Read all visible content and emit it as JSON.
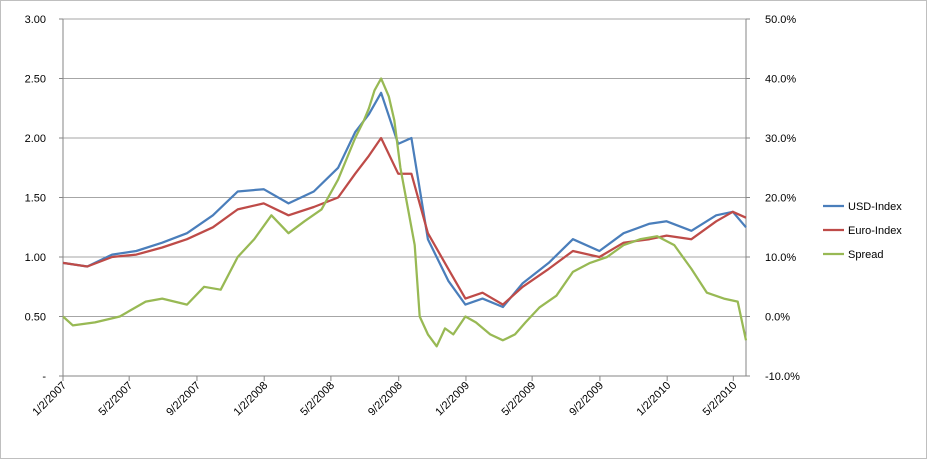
{
  "chart_data": {
    "type": "line",
    "title": "",
    "xlabel": "",
    "ylabel": "",
    "xlim": [
      "2007-01-02",
      "2010-05-25"
    ],
    "ylim": [
      0,
      3.0
    ],
    "y2lim": [
      -10,
      50
    ],
    "y_ticks": [
      "-",
      "0.50",
      "1.00",
      "1.50",
      "2.00",
      "2.50",
      "3.00"
    ],
    "y2_ticks": [
      "-10.0%",
      "0.0%",
      "10.0%",
      "20.0%",
      "30.0%",
      "40.0%",
      "50.0%"
    ],
    "x_ticks": [
      "1/2/2007",
      "5/2/2007",
      "9/2/2007",
      "1/2/2008",
      "5/2/2008",
      "9/2/2008",
      "1/2/2009",
      "5/2/2009",
      "9/2/2009",
      "1/2/2010",
      "5/2/2010"
    ],
    "grid": true,
    "legend": "right",
    "series": [
      {
        "name": "USD-Index",
        "axis": "left",
        "color": "#4a7ebb",
        "x": [
          "2007-01-02",
          "2007-02-15",
          "2007-04-01",
          "2007-05-15",
          "2007-07-01",
          "2007-08-15",
          "2007-10-01",
          "2007-11-15",
          "2008-01-01",
          "2008-02-15",
          "2008-04-01",
          "2008-05-15",
          "2008-06-15",
          "2008-07-10",
          "2008-08-01",
          "2008-09-01",
          "2008-09-25",
          "2008-10-25",
          "2008-12-01",
          "2009-01-01",
          "2009-02-01",
          "2009-03-10",
          "2009-04-15",
          "2009-06-01",
          "2009-07-15",
          "2009-09-01",
          "2009-10-15",
          "2009-12-01",
          "2010-01-01",
          "2010-02-15",
          "2010-04-01",
          "2010-05-01",
          "2010-05-25"
        ],
        "y": [
          0.95,
          0.92,
          1.02,
          1.05,
          1.12,
          1.2,
          1.35,
          1.55,
          1.57,
          1.45,
          1.55,
          1.75,
          2.05,
          2.2,
          2.38,
          1.95,
          2.0,
          1.15,
          0.8,
          0.6,
          0.65,
          0.58,
          0.78,
          0.95,
          1.15,
          1.05,
          1.2,
          1.28,
          1.3,
          1.22,
          1.35,
          1.38,
          1.25
        ]
      },
      {
        "name": "Euro-Index",
        "axis": "left",
        "color": "#be4b48",
        "x": [
          "2007-01-02",
          "2007-02-15",
          "2007-04-01",
          "2007-05-15",
          "2007-07-01",
          "2007-08-15",
          "2007-10-01",
          "2007-11-15",
          "2008-01-01",
          "2008-02-15",
          "2008-04-01",
          "2008-05-15",
          "2008-06-15",
          "2008-07-10",
          "2008-08-01",
          "2008-09-01",
          "2008-09-25",
          "2008-10-25",
          "2008-12-01",
          "2009-01-01",
          "2009-02-01",
          "2009-03-10",
          "2009-04-15",
          "2009-06-01",
          "2009-07-15",
          "2009-09-01",
          "2009-10-15",
          "2009-12-01",
          "2010-01-01",
          "2010-02-15",
          "2010-04-01",
          "2010-05-01",
          "2010-05-25"
        ],
        "y": [
          0.95,
          0.92,
          1.0,
          1.02,
          1.08,
          1.15,
          1.25,
          1.4,
          1.45,
          1.35,
          1.42,
          1.5,
          1.7,
          1.85,
          2.0,
          1.7,
          1.7,
          1.2,
          0.9,
          0.65,
          0.7,
          0.6,
          0.75,
          0.9,
          1.05,
          1.0,
          1.12,
          1.15,
          1.18,
          1.15,
          1.3,
          1.38,
          1.33
        ]
      },
      {
        "name": "Spread",
        "axis": "right",
        "color": "#98b954",
        "x": [
          "2007-01-02",
          "2007-01-20",
          "2007-03-01",
          "2007-04-15",
          "2007-06-01",
          "2007-07-01",
          "2007-08-15",
          "2007-09-15",
          "2007-10-15",
          "2007-11-15",
          "2007-12-15",
          "2008-01-15",
          "2008-02-15",
          "2008-03-15",
          "2008-04-15",
          "2008-05-15",
          "2008-06-15",
          "2008-07-01",
          "2008-07-10",
          "2008-07-20",
          "2008-08-01",
          "2008-08-15",
          "2008-08-25",
          "2008-09-05",
          "2008-09-15",
          "2008-10-01",
          "2008-10-10",
          "2008-10-25",
          "2008-11-10",
          "2008-11-25",
          "2008-12-10",
          "2009-01-01",
          "2009-01-20",
          "2009-02-15",
          "2009-03-10",
          "2009-04-01",
          "2009-04-20",
          "2009-05-15",
          "2009-06-15",
          "2009-07-15",
          "2009-08-15",
          "2009-09-15",
          "2009-10-15",
          "2009-11-15",
          "2009-12-15",
          "2010-01-15",
          "2010-02-15",
          "2010-03-15",
          "2010-04-15",
          "2010-05-10",
          "2010-05-25"
        ],
        "y": [
          0.0,
          -1.5,
          -1.0,
          0.0,
          2.5,
          3.0,
          2.0,
          5.0,
          4.5,
          10.0,
          13.0,
          17.0,
          14.0,
          16.0,
          18.0,
          23.0,
          30.0,
          33.0,
          35.0,
          38.0,
          40.0,
          37.0,
          33.0,
          25.0,
          20.0,
          12.0,
          0.0,
          -3.0,
          -5.0,
          -2.0,
          -3.0,
          0.0,
          -1.0,
          -3.0,
          -4.0,
          -3.0,
          -1.0,
          1.5,
          3.5,
          7.5,
          9.0,
          10.0,
          12.0,
          13.0,
          13.5,
          12.0,
          8.0,
          4.0,
          3.0,
          2.5,
          -4.0
        ]
      }
    ]
  }
}
